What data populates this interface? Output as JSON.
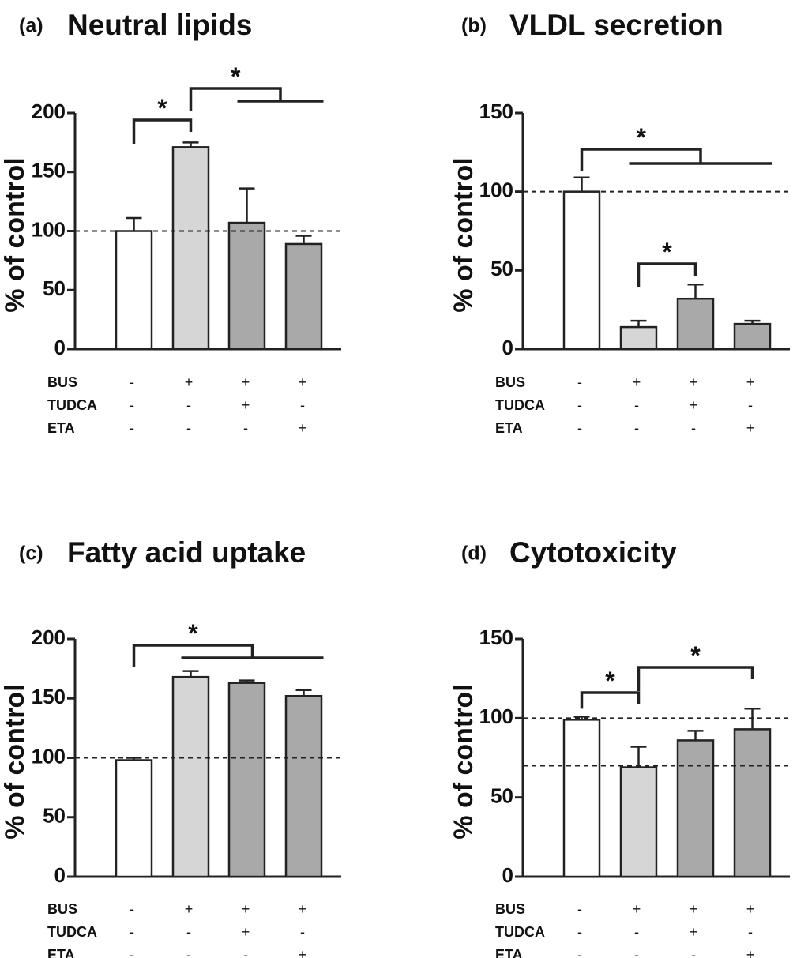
{
  "chart_data": [
    {
      "id": "a",
      "type": "bar",
      "panel_letter": "(a)",
      "title": "Neutral lipids",
      "ylabel": "% of control",
      "ylim": [
        0,
        200
      ],
      "yticks": [
        0,
        50,
        100,
        150,
        200
      ],
      "values": [
        100,
        171,
        107,
        89
      ],
      "errors": [
        11,
        4,
        29,
        7
      ],
      "bar_colors": [
        "#ffffff",
        "#d6d6d6",
        "#a9a9a9",
        "#a9a9a9"
      ],
      "reference_lines": [
        100
      ],
      "conditions": [
        {
          "label": "BUS",
          "signs": [
            "-",
            "+",
            "+",
            "+"
          ]
        },
        {
          "label": "TUDCA",
          "signs": [
            "-",
            "-",
            "+",
            "-"
          ]
        },
        {
          "label": "ETA",
          "signs": [
            "-",
            "-",
            "-",
            "+"
          ]
        }
      ],
      "significance": [
        {
          "type": "simple",
          "from": 0,
          "to": 1,
          "label": "*"
        },
        {
          "type": "group",
          "from": 1,
          "to": [
            2,
            3
          ],
          "label": "*"
        }
      ]
    },
    {
      "id": "b",
      "type": "bar",
      "panel_letter": "(b)",
      "title": "VLDL secretion",
      "ylabel": "% of control",
      "ylim": [
        0,
        150
      ],
      "yticks": [
        0,
        50,
        100,
        150
      ],
      "values": [
        100,
        14,
        32,
        16
      ],
      "errors": [
        9,
        4,
        9,
        2
      ],
      "bar_colors": [
        "#ffffff",
        "#d6d6d6",
        "#a9a9a9",
        "#a9a9a9"
      ],
      "reference_lines": [
        100
      ],
      "conditions": [
        {
          "label": "BUS",
          "signs": [
            "-",
            "+",
            "+",
            "+"
          ]
        },
        {
          "label": "TUDCA",
          "signs": [
            "-",
            "-",
            "+",
            "-"
          ]
        },
        {
          "label": "ETA",
          "signs": [
            "-",
            "-",
            "-",
            "+"
          ]
        }
      ],
      "significance": [
        {
          "type": "group",
          "from": 0,
          "to": [
            1,
            3
          ],
          "label": "*"
        },
        {
          "type": "simple",
          "from": 1,
          "to": 2,
          "label": "*"
        }
      ]
    },
    {
      "id": "c",
      "type": "bar",
      "panel_letter": "(c)",
      "title": "Fatty acid uptake",
      "ylabel": "% of control",
      "ylim": [
        0,
        200
      ],
      "yticks": [
        0,
        50,
        100,
        150,
        200
      ],
      "values": [
        98,
        168,
        163,
        152
      ],
      "errors": [
        2,
        5,
        2,
        5
      ],
      "bar_colors": [
        "#ffffff",
        "#d6d6d6",
        "#a9a9a9",
        "#a9a9a9"
      ],
      "reference_lines": [
        100
      ],
      "conditions": [
        {
          "label": "BUS",
          "signs": [
            "-",
            "+",
            "+",
            "+"
          ]
        },
        {
          "label": "TUDCA",
          "signs": [
            "-",
            "-",
            "+",
            "-"
          ]
        },
        {
          "label": "ETA",
          "signs": [
            "-",
            "-",
            "-",
            "+"
          ]
        }
      ],
      "significance": [
        {
          "type": "group",
          "from": 0,
          "to": [
            1,
            3
          ],
          "label": "*"
        }
      ]
    },
    {
      "id": "d",
      "type": "bar",
      "panel_letter": "(d)",
      "title": "Cytotoxicity",
      "ylabel": "% of control",
      "ylim": [
        0,
        150
      ],
      "yticks": [
        0,
        50,
        100,
        150
      ],
      "values": [
        99,
        69,
        86,
        93
      ],
      "errors": [
        2,
        13,
        6,
        13
      ],
      "bar_colors": [
        "#ffffff",
        "#d6d6d6",
        "#a9a9a9",
        "#a9a9a9"
      ],
      "reference_lines": [
        100,
        70
      ],
      "conditions": [
        {
          "label": "BUS",
          "signs": [
            "-",
            "+",
            "+",
            "+"
          ]
        },
        {
          "label": "TUDCA",
          "signs": [
            "-",
            "-",
            "+",
            "-"
          ]
        },
        {
          "label": "ETA",
          "signs": [
            "-",
            "-",
            "-",
            "+"
          ]
        }
      ],
      "significance": [
        {
          "type": "simple",
          "from": 0,
          "to": 1,
          "label": "*"
        },
        {
          "type": "simple",
          "from": 1,
          "to": 3,
          "label": "*"
        }
      ]
    }
  ]
}
